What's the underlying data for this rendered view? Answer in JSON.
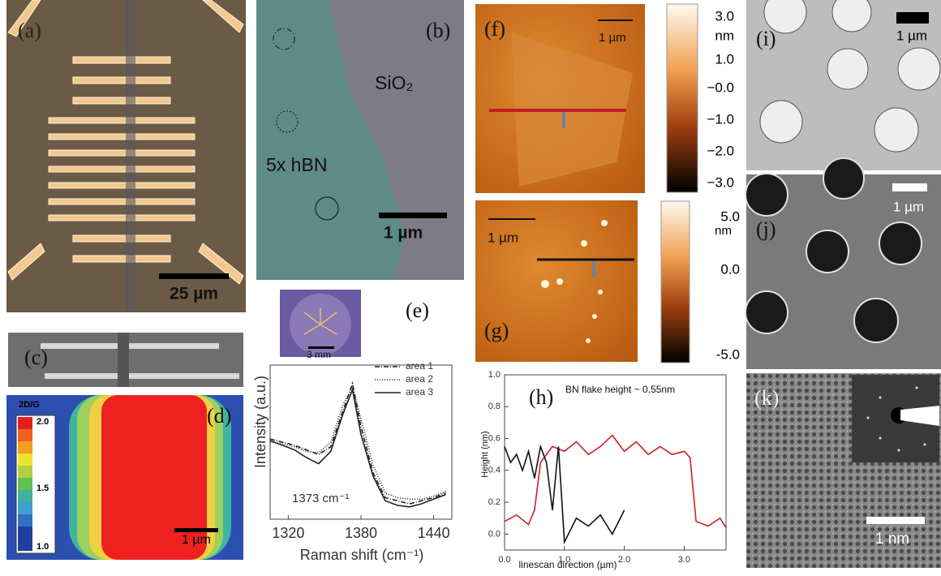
{
  "panels": {
    "a": {
      "label": "(a)",
      "scale_bar": "25 µm"
    },
    "b": {
      "label": "(b)",
      "substrate": "SiO₂",
      "flake": "5x hBN",
      "scale_bar": "1 µm"
    },
    "c": {
      "label": "(c)"
    },
    "d": {
      "label": "(d)",
      "colorbar_title": "2D/G",
      "colorbar_ticks": [
        "2.0",
        "1.5",
        "1.0"
      ],
      "scale_bar": "1 µm"
    },
    "e": {
      "label": "(e)",
      "inset_scale_bar": "3 mm",
      "chart": {
        "type": "line",
        "ylabel": "Intensity (a.u.)",
        "xlabel": "Raman shift (cm⁻¹)",
        "annotation": "1373 cm⁻¹",
        "x": [
          1305,
          1315,
          1325,
          1335,
          1345,
          1355,
          1365,
          1373,
          1380,
          1390,
          1400,
          1410,
          1420,
          1430,
          1440,
          1450
        ],
        "xlim": [
          1305,
          1455
        ],
        "xticks": [
          1320,
          1380,
          1440
        ],
        "ylim": [
          0,
          1
        ],
        "series": [
          {
            "name": "area 1",
            "color": "#222222",
            "dash": "6 2 1 2",
            "values": [
              0.52,
              0.5,
              0.48,
              0.45,
              0.42,
              0.47,
              0.7,
              0.88,
              0.6,
              0.3,
              0.14,
              0.12,
              0.1,
              0.12,
              0.14,
              0.17
            ]
          },
          {
            "name": "area 2",
            "color": "#222222",
            "dash": "1 2",
            "values": [
              0.5,
              0.49,
              0.47,
              0.44,
              0.43,
              0.5,
              0.74,
              0.86,
              0.65,
              0.35,
              0.17,
              0.14,
              0.13,
              0.13,
              0.15,
              0.18
            ]
          },
          {
            "name": "area 3",
            "color": "#222222",
            "dash": "none",
            "values": [
              0.51,
              0.48,
              0.45,
              0.4,
              0.36,
              0.44,
              0.68,
              0.84,
              0.55,
              0.28,
              0.12,
              0.09,
              0.08,
              0.1,
              0.13,
              0.16
            ]
          }
        ]
      }
    },
    "f": {
      "label": "(f)",
      "scale_bar": "1 µm",
      "colorbar_unit": "nm",
      "colorbar_ticks": [
        "3.0",
        "1.0",
        "−0.0",
        "−1.0",
        "−2.0",
        "−3.0"
      ]
    },
    "g": {
      "label": "(g)",
      "scale_bar": "1 µm",
      "colorbar_unit": "nm",
      "colorbar_ticks": [
        "5.0",
        "0.0",
        "-5.0"
      ]
    },
    "h": {
      "label": "(h)",
      "chart": {
        "type": "line",
        "title": "BN flake height ~ 0.55nm",
        "ylabel": "Height (nm)",
        "xlabel": "linescan direction (µm)",
        "xlim": [
          0,
          3.7
        ],
        "ylim": [
          -0.1,
          1.0
        ],
        "xticks": [
          {
            "value": 0,
            "label": "0.0"
          },
          {
            "value": 1,
            "label": "1.0"
          },
          {
            "value": 2,
            "label": "2.0"
          },
          {
            "value": 3,
            "label": "3.0"
          }
        ],
        "yticks": [
          {
            "value": 0,
            "label": "0.0"
          },
          {
            "value": 0.2,
            "label": "0.2"
          },
          {
            "value": 0.4,
            "label": "0.4"
          },
          {
            "value": 0.6,
            "label": "0.6"
          },
          {
            "value": 0.8,
            "label": "0.8"
          },
          {
            "value": 1,
            "label": "1.0"
          }
        ],
        "series": [
          {
            "color": "#cc2222",
            "x": [
              0,
              0.2,
              0.4,
              0.5,
              0.6,
              0.8,
              1.0,
              1.2,
              1.4,
              1.6,
              1.8,
              2.0,
              2.2,
              2.4,
              2.6,
              2.8,
              3.0,
              3.1,
              3.2,
              3.4,
              3.6,
              3.7
            ],
            "values": [
              0.08,
              0.12,
              0.06,
              0.15,
              0.45,
              0.55,
              0.52,
              0.58,
              0.5,
              0.55,
              0.62,
              0.52,
              0.58,
              0.5,
              0.55,
              0.5,
              0.52,
              0.48,
              0.08,
              0.05,
              0.1,
              0.04
            ]
          },
          {
            "color": "#111111",
            "x": [
              0,
              0.1,
              0.2,
              0.3,
              0.4,
              0.5,
              0.6,
              0.7,
              0.8,
              0.9,
              1.0,
              1.2,
              1.4,
              1.6,
              1.8,
              2.0
            ],
            "values": [
              0.55,
              0.45,
              0.5,
              0.4,
              0.52,
              0.35,
              0.55,
              0.45,
              0.15,
              0.55,
              -0.05,
              0.1,
              0.05,
              0.12,
              0.0,
              0.15
            ]
          }
        ]
      }
    },
    "i": {
      "label": "(i)",
      "scale_bar": "1 µm"
    },
    "j": {
      "label": "(j)",
      "scale_bar": "1 µm"
    },
    "k": {
      "label": "(k)",
      "scale_bar": "1 nm"
    }
  }
}
